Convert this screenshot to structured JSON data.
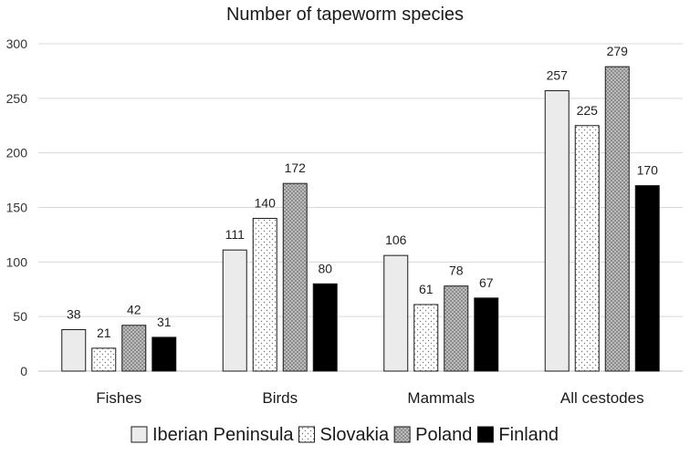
{
  "chart_data": {
    "type": "bar",
    "title": "Number of tapeworm species",
    "categories": [
      "Fishes",
      "Birds",
      "Mammals",
      "All cestodes"
    ],
    "series": [
      {
        "name": "Iberian Peninsula",
        "values": [
          38,
          111,
          106,
          257
        ],
        "fill": "light"
      },
      {
        "name": "Slovakia",
        "values": [
          21,
          140,
          61,
          225
        ],
        "fill": "dots"
      },
      {
        "name": "Poland",
        "values": [
          42,
          172,
          78,
          279
        ],
        "fill": "crosshatch"
      },
      {
        "name": "Finland",
        "values": [
          31,
          80,
          67,
          170
        ],
        "fill": "black"
      }
    ],
    "ylim": [
      0,
      300
    ],
    "yticks": [
      0,
      50,
      100,
      150,
      200,
      250,
      300
    ],
    "grid": true,
    "legend": "bottom",
    "colors": {
      "light": "#ebebeb",
      "black": "#000000",
      "stroke": "#1a1a1a",
      "grid": "#d9d9d9"
    }
  }
}
